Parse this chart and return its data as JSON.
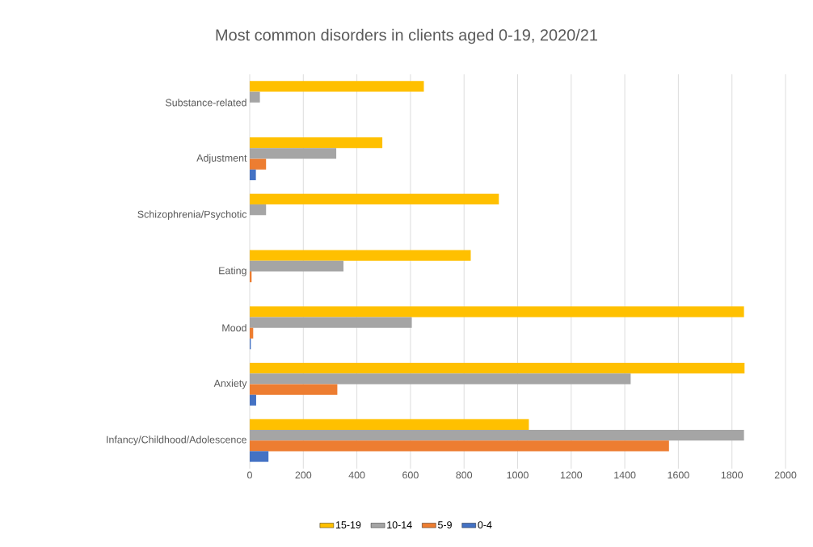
{
  "chart_data": {
    "type": "bar",
    "orientation": "horizontal",
    "title": "Most common disorders in clients aged 0-19, 2020/21",
    "categories": [
      "Substance-related",
      "Adjustment",
      "Schizophrenia/Psychotic",
      "Eating",
      "Mood",
      "Anxiety",
      "Infancy/Childhood/Adolescence"
    ],
    "series": [
      {
        "name": "15-19",
        "color": "#ffc000",
        "values": [
          650,
          495,
          930,
          825,
          1845,
          1847,
          1042
        ]
      },
      {
        "name": "10-14",
        "color": "#a5a5a5",
        "values": [
          38,
          323,
          61,
          350,
          605,
          1422,
          1845
        ]
      },
      {
        "name": "5-9",
        "color": "#ed7d31",
        "values": [
          null,
          61,
          null,
          7,
          13,
          327,
          1565
        ]
      },
      {
        "name": "0-4",
        "color": "#4472c4",
        "values": [
          null,
          23,
          null,
          null,
          4,
          24,
          70
        ]
      }
    ],
    "xlim": [
      0,
      2000
    ],
    "xticks": [
      0,
      200,
      400,
      600,
      800,
      1000,
      1200,
      1400,
      1600,
      1800,
      2000
    ],
    "grid": "x",
    "legend": "bottom"
  }
}
